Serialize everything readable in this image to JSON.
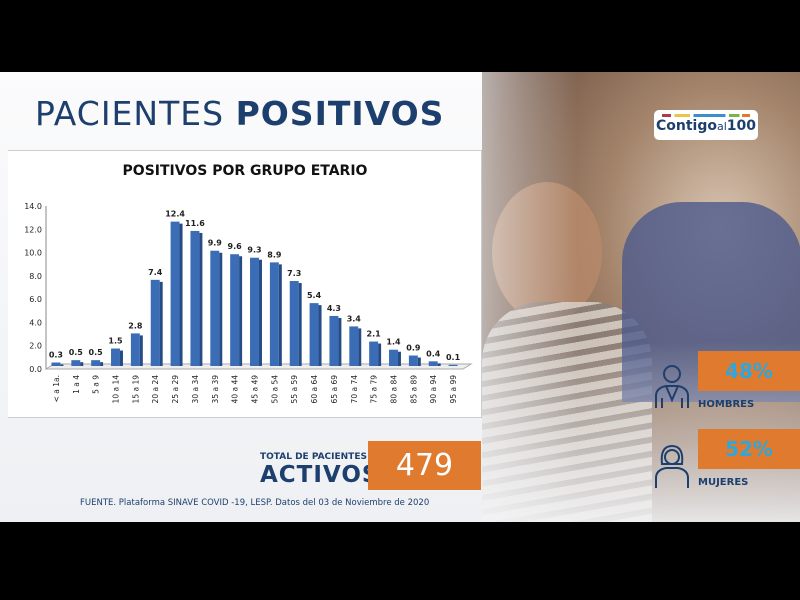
{
  "title": {
    "light": "PACIENTES",
    "bold": "POSITIVOS"
  },
  "chart_data": {
    "type": "bar",
    "title": "POSITIVOS POR GRUPO ETARIO",
    "categories": [
      "< a 1a.",
      "1 a 4",
      "5 a 9",
      "10 a 14",
      "15 a 19",
      "20 a 24",
      "25 a 29",
      "30 a 34",
      "35 a 39",
      "40 a 44",
      "45 a 49",
      "50 a 54",
      "55 a 59",
      "60 a 64",
      "65 a 69",
      "70 a 74",
      "75 a 79",
      "80 a 84",
      "85 a 89",
      "90 a 94",
      "95 a 99"
    ],
    "values": [
      0.3,
      0.5,
      0.5,
      1.5,
      2.8,
      7.4,
      12.4,
      11.6,
      9.9,
      9.6,
      9.3,
      8.9,
      7.3,
      5.4,
      4.3,
      3.4,
      2.1,
      1.4,
      0.9,
      0.4,
      0.1
    ],
    "yticks": [
      "0.0",
      "2.0",
      "4.0",
      "6.0",
      "8.0",
      "10.0",
      "12.0",
      "14.0"
    ],
    "ylim": [
      0,
      14
    ],
    "bar_color": "#3a6db5",
    "data_labels": true
  },
  "total": {
    "label": "TOTAL DE PACIENTES",
    "big": "ACTIVOS",
    "value": "479"
  },
  "source": "FUENTE. Plataforma SINAVE COVID -19, LESP. Datos del 03 de Noviembre de 2020",
  "logo": "Contigo al 100",
  "gender": {
    "men": {
      "pct": "48%",
      "label": "HOMBRES",
      "icon": "man-icon"
    },
    "women": {
      "pct": "52%",
      "label": "MUJERES",
      "icon": "woman-icon"
    }
  },
  "colors": {
    "navy": "#1d3f6e",
    "orange": "#e07a2e",
    "cyan": "#2ea7dc"
  }
}
